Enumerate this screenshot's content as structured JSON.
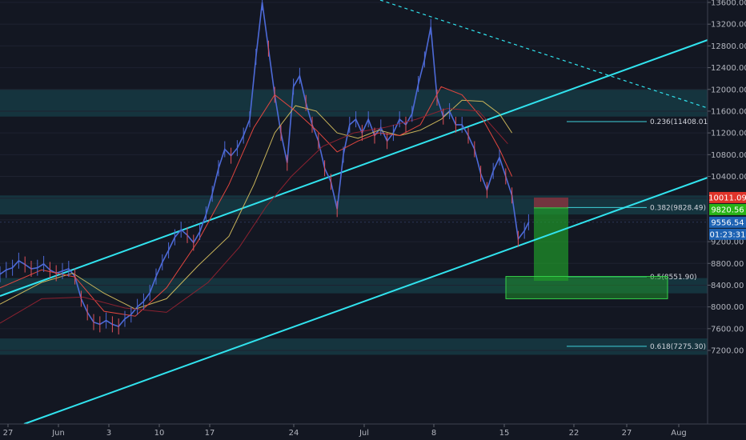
{
  "chart_data": {
    "type": "candlestick",
    "x_ticks": [
      "27",
      "Jun",
      "3",
      "10",
      "17",
      "24",
      "Jul",
      "8",
      "15",
      "22",
      "27",
      "Aug"
    ],
    "y_ticks": [
      7200,
      7600,
      8000,
      8400,
      8800,
      9200,
      9600,
      10000,
      10400,
      10800,
      11200,
      11600,
      12000,
      12400,
      12800,
      13200,
      13600
    ],
    "y_tick_labels": [
      "7200.00",
      "7600.00",
      "8000.00",
      "8400.00",
      "8800.00",
      "9200.00",
      "",
      "",
      "10400.00",
      "10800.00",
      "11200.00",
      "11600.00",
      "12000.00",
      "12400.00",
      "12800.00",
      "13200.00",
      "13600.00"
    ],
    "ylim": [
      7000,
      13700
    ],
    "fib_levels": [
      {
        "label": "0.236(11408.01)",
        "value": 11408.01
      },
      {
        "label": "0.382(9828.49)",
        "value": 9828.49
      },
      {
        "label": "0.5(8551.90)",
        "value": 8551.9
      },
      {
        "label": "0.618(7275.30)",
        "value": 7275.3
      }
    ],
    "price_badges": [
      {
        "text": "10011.09",
        "value": 10011.09,
        "color": "#e0342a"
      },
      {
        "text": "9820.56",
        "value": 9820.56,
        "color": "#29b317"
      },
      {
        "text": "9556.54",
        "value": 9556.54,
        "color": "#1e63b4"
      },
      {
        "text": "01:23:31",
        "value": 9395,
        "color": "#1e63b4"
      }
    ],
    "zones": [
      {
        "from": 11500,
        "to": 12000
      },
      {
        "from": 9700,
        "to": 10050
      },
      {
        "from": 8250,
        "to": 8530
      },
      {
        "from": 7120,
        "to": 7420
      }
    ],
    "position": {
      "entry": 9820.56,
      "stop": 10011.09,
      "target": 8480,
      "box_high": 8560,
      "box_low": 8150
    },
    "series": [
      {
        "name": "price",
        "color": "#4d6ad8",
        "points": [
          [
            0,
            8600
          ],
          [
            3,
            8680
          ],
          [
            6,
            8720
          ],
          [
            9,
            8850
          ],
          [
            12,
            8780
          ],
          [
            15,
            8700
          ],
          [
            18,
            8720
          ],
          [
            21,
            8790
          ],
          [
            24,
            8680
          ],
          [
            27,
            8620
          ],
          [
            30,
            8660
          ],
          [
            33,
            8700
          ],
          [
            36,
            8560
          ],
          [
            39,
            8150
          ],
          [
            42,
            7900
          ],
          [
            45,
            7720
          ],
          [
            48,
            7680
          ],
          [
            51,
            7750
          ],
          [
            54,
            7680
          ],
          [
            57,
            7640
          ],
          [
            60,
            7780
          ],
          [
            63,
            7860
          ],
          [
            66,
            8000
          ],
          [
            69,
            8100
          ],
          [
            72,
            8260
          ],
          [
            75,
            8560
          ],
          [
            78,
            8820
          ],
          [
            81,
            9040
          ],
          [
            84,
            9280
          ],
          [
            87,
            9420
          ],
          [
            90,
            9320
          ],
          [
            93,
            9180
          ],
          [
            96,
            9380
          ],
          [
            99,
            9700
          ],
          [
            102,
            10080
          ],
          [
            105,
            10550
          ],
          [
            108,
            10900
          ],
          [
            111,
            10780
          ],
          [
            114,
            10920
          ],
          [
            117,
            11150
          ],
          [
            120,
            11450
          ],
          [
            123,
            12600
          ],
          [
            126,
            13600
          ],
          [
            129,
            12750
          ],
          [
            132,
            11900
          ],
          [
            135,
            11200
          ],
          [
            138,
            10650
          ],
          [
            141,
            12050
          ],
          [
            144,
            12250
          ],
          [
            147,
            11750
          ],
          [
            150,
            11350
          ],
          [
            153,
            11050
          ],
          [
            156,
            10550
          ],
          [
            159,
            10300
          ],
          [
            162,
            9800
          ],
          [
            165,
            10800
          ],
          [
            168,
            11350
          ],
          [
            171,
            11450
          ],
          [
            174,
            11200
          ],
          [
            177,
            11450
          ],
          [
            180,
            11150
          ],
          [
            183,
            11300
          ],
          [
            186,
            11050
          ],
          [
            189,
            11200
          ],
          [
            192,
            11450
          ],
          [
            195,
            11350
          ],
          [
            198,
            11550
          ],
          [
            201,
            12100
          ],
          [
            204,
            12550
          ],
          [
            207,
            13150
          ],
          [
            210,
            11850
          ],
          [
            213,
            11500
          ],
          [
            216,
            11600
          ],
          [
            219,
            11350
          ],
          [
            222,
            11350
          ],
          [
            225,
            11150
          ],
          [
            228,
            10900
          ],
          [
            231,
            10450
          ],
          [
            234,
            10150
          ],
          [
            237,
            10500
          ],
          [
            240,
            10750
          ],
          [
            243,
            10400
          ],
          [
            246,
            10050
          ],
          [
            249,
            9250
          ],
          [
            252,
            9400
          ],
          [
            254,
            9556.54
          ]
        ]
      },
      {
        "name": "ma-yellow",
        "color": "#c9b45a",
        "points": [
          [
            0,
            8050
          ],
          [
            20,
            8450
          ],
          [
            35,
            8620
          ],
          [
            50,
            8250
          ],
          [
            65,
            7960
          ],
          [
            80,
            8150
          ],
          [
            95,
            8750
          ],
          [
            110,
            9300
          ],
          [
            122,
            10250
          ],
          [
            132,
            11200
          ],
          [
            142,
            11700
          ],
          [
            152,
            11600
          ],
          [
            162,
            11200
          ],
          [
            172,
            11100
          ],
          [
            182,
            11250
          ],
          [
            192,
            11150
          ],
          [
            202,
            11250
          ],
          [
            212,
            11450
          ],
          [
            222,
            11800
          ],
          [
            232,
            11780
          ],
          [
            240,
            11550
          ],
          [
            246,
            11200
          ]
        ]
      },
      {
        "name": "ma-red",
        "color": "#e3463f",
        "points": [
          [
            0,
            8350
          ],
          [
            20,
            8680
          ],
          [
            36,
            8550
          ],
          [
            50,
            7920
          ],
          [
            65,
            7830
          ],
          [
            80,
            8350
          ],
          [
            95,
            9200
          ],
          [
            110,
            10250
          ],
          [
            122,
            11300
          ],
          [
            132,
            11900
          ],
          [
            142,
            11600
          ],
          [
            152,
            11250
          ],
          [
            162,
            10850
          ],
          [
            172,
            11050
          ],
          [
            182,
            11200
          ],
          [
            192,
            11150
          ],
          [
            202,
            11350
          ],
          [
            212,
            12050
          ],
          [
            222,
            11900
          ],
          [
            232,
            11450
          ],
          [
            240,
            10900
          ],
          [
            246,
            10400
          ]
        ]
      },
      {
        "name": "ma-darkred",
        "color": "#8c2230",
        "points": [
          [
            0,
            7700
          ],
          [
            20,
            8150
          ],
          [
            40,
            8180
          ],
          [
            60,
            7980
          ],
          [
            80,
            7900
          ],
          [
            100,
            8450
          ],
          [
            115,
            9100
          ],
          [
            128,
            9850
          ],
          [
            140,
            10400
          ],
          [
            155,
            10950
          ],
          [
            170,
            11200
          ],
          [
            185,
            11300
          ],
          [
            200,
            11450
          ],
          [
            215,
            11650
          ],
          [
            230,
            11600
          ],
          [
            244,
            11000
          ]
        ]
      }
    ]
  }
}
